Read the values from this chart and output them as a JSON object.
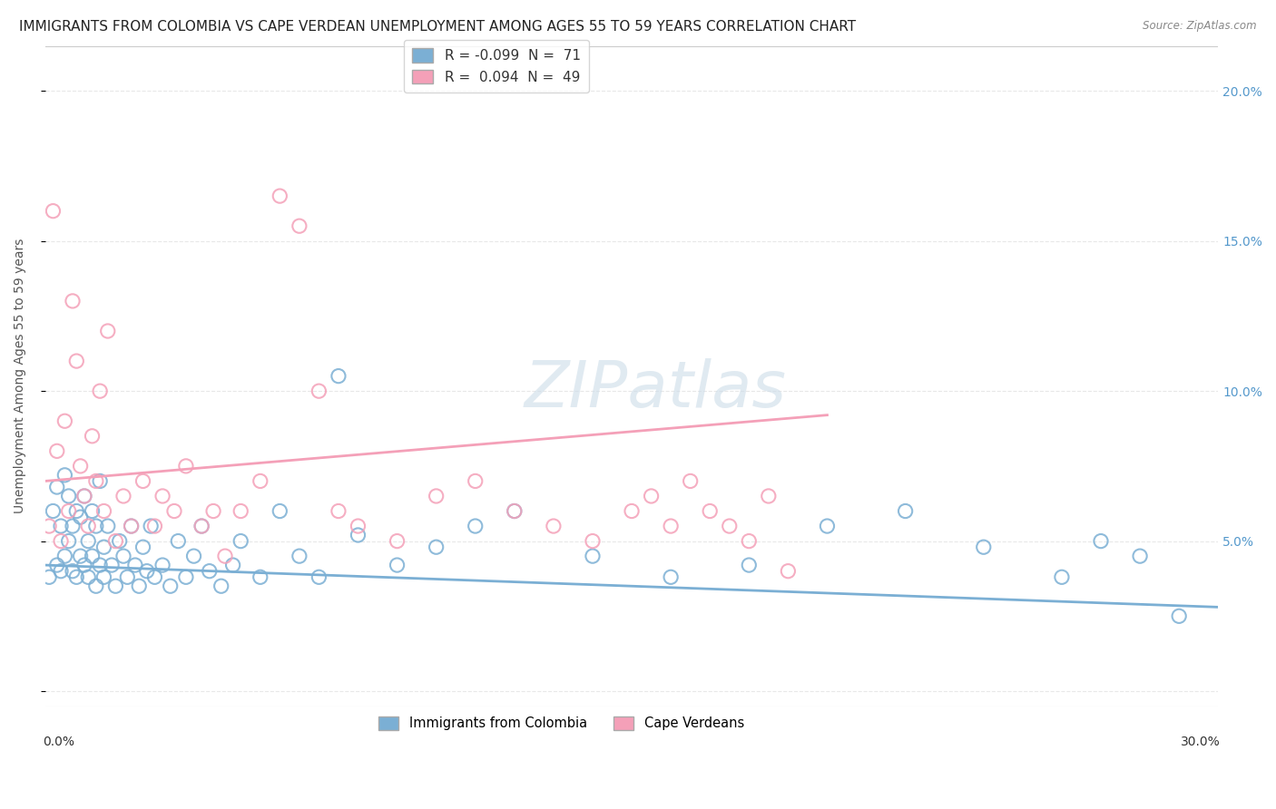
{
  "title": "IMMIGRANTS FROM COLOMBIA VS CAPE VERDEAN UNEMPLOYMENT AMONG AGES 55 TO 59 YEARS CORRELATION CHART",
  "source": "Source: ZipAtlas.com",
  "ylabel": "Unemployment Among Ages 55 to 59 years",
  "xlim": [
    0.0,
    0.3
  ],
  "ylim": [
    -0.005,
    0.215
  ],
  "right_yticks": [
    0.0,
    0.05,
    0.1,
    0.15,
    0.2
  ],
  "right_yticklabels": [
    "",
    "5.0%",
    "10.0%",
    "15.0%",
    "20.0%"
  ],
  "colombia_color": "#7bafd4",
  "cape_verde_color": "#f4a0b8",
  "colombia_trend_x": [
    0.0,
    0.3
  ],
  "colombia_trend_y": [
    0.042,
    0.028
  ],
  "cape_verde_trend_x": [
    0.0,
    0.2
  ],
  "cape_verde_trend_y": [
    0.07,
    0.092
  ],
  "grid_color": "#e8e8e8",
  "background_color": "#ffffff",
  "title_fontsize": 11,
  "axis_label_fontsize": 10,
  "tick_fontsize": 10,
  "colombia_scatter_x": [
    0.001,
    0.002,
    0.003,
    0.003,
    0.004,
    0.004,
    0.005,
    0.005,
    0.006,
    0.006,
    0.007,
    0.007,
    0.008,
    0.008,
    0.009,
    0.009,
    0.01,
    0.01,
    0.011,
    0.011,
    0.012,
    0.012,
    0.013,
    0.013,
    0.014,
    0.014,
    0.015,
    0.015,
    0.016,
    0.017,
    0.018,
    0.019,
    0.02,
    0.021,
    0.022,
    0.023,
    0.024,
    0.025,
    0.026,
    0.027,
    0.028,
    0.03,
    0.032,
    0.034,
    0.036,
    0.038,
    0.04,
    0.042,
    0.045,
    0.048,
    0.05,
    0.055,
    0.06,
    0.065,
    0.07,
    0.075,
    0.08,
    0.09,
    0.1,
    0.11,
    0.12,
    0.14,
    0.16,
    0.18,
    0.2,
    0.22,
    0.24,
    0.26,
    0.27,
    0.28,
    0.29
  ],
  "colombia_scatter_y": [
    0.038,
    0.06,
    0.042,
    0.068,
    0.055,
    0.04,
    0.045,
    0.072,
    0.05,
    0.065,
    0.04,
    0.055,
    0.06,
    0.038,
    0.045,
    0.058,
    0.042,
    0.065,
    0.05,
    0.038,
    0.045,
    0.06,
    0.035,
    0.055,
    0.042,
    0.07,
    0.038,
    0.048,
    0.055,
    0.042,
    0.035,
    0.05,
    0.045,
    0.038,
    0.055,
    0.042,
    0.035,
    0.048,
    0.04,
    0.055,
    0.038,
    0.042,
    0.035,
    0.05,
    0.038,
    0.045,
    0.055,
    0.04,
    0.035,
    0.042,
    0.05,
    0.038,
    0.06,
    0.045,
    0.038,
    0.105,
    0.052,
    0.042,
    0.048,
    0.055,
    0.06,
    0.045,
    0.038,
    0.042,
    0.055,
    0.06,
    0.048,
    0.038,
    0.05,
    0.045,
    0.025
  ],
  "cape_verde_scatter_x": [
    0.001,
    0.002,
    0.003,
    0.004,
    0.005,
    0.006,
    0.007,
    0.008,
    0.009,
    0.01,
    0.011,
    0.012,
    0.013,
    0.014,
    0.015,
    0.016,
    0.018,
    0.02,
    0.022,
    0.025,
    0.028,
    0.03,
    0.033,
    0.036,
    0.04,
    0.043,
    0.046,
    0.05,
    0.055,
    0.06,
    0.065,
    0.07,
    0.075,
    0.08,
    0.09,
    0.1,
    0.11,
    0.12,
    0.13,
    0.14,
    0.15,
    0.155,
    0.16,
    0.165,
    0.17,
    0.175,
    0.18,
    0.185,
    0.19
  ],
  "cape_verde_scatter_y": [
    0.055,
    0.16,
    0.08,
    0.05,
    0.09,
    0.06,
    0.13,
    0.11,
    0.075,
    0.065,
    0.055,
    0.085,
    0.07,
    0.1,
    0.06,
    0.12,
    0.05,
    0.065,
    0.055,
    0.07,
    0.055,
    0.065,
    0.06,
    0.075,
    0.055,
    0.06,
    0.045,
    0.06,
    0.07,
    0.165,
    0.155,
    0.1,
    0.06,
    0.055,
    0.05,
    0.065,
    0.07,
    0.06,
    0.055,
    0.05,
    0.06,
    0.065,
    0.055,
    0.07,
    0.06,
    0.055,
    0.05,
    0.065,
    0.04
  ]
}
